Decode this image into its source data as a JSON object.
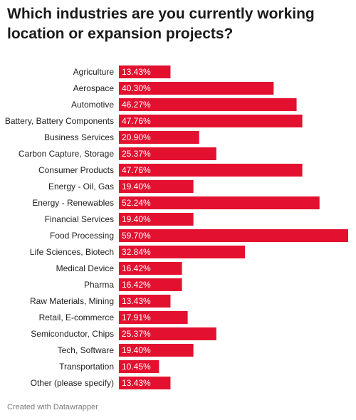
{
  "title": "Which industries are you currently working location or expansion projects?",
  "footer": "Created with Datawrapper",
  "colors": {
    "bar": "#e3112f"
  },
  "chart_data": {
    "type": "bar",
    "orientation": "horizontal",
    "title": "Which industries are you currently working location or expansion projects?",
    "categories": [
      "Agriculture",
      "Aerospace",
      "Automotive",
      "Battery, Battery Components",
      "Business Services",
      "Carbon Capture, Storage",
      "Consumer Products",
      "Energy - Oil, Gas",
      "Energy - Renewables",
      "Financial Services",
      "Food Processing",
      "Life Sciences, Biotech",
      "Medical Device",
      "Pharma",
      "Raw Materials, Mining",
      "Retail, E-commerce",
      "Semiconductor, Chips",
      "Tech, Software",
      "Transportation",
      "Other (please specify)"
    ],
    "values": [
      13.43,
      40.3,
      46.27,
      47.76,
      20.9,
      25.37,
      47.76,
      19.4,
      52.24,
      19.4,
      59.7,
      32.84,
      16.42,
      16.42,
      13.43,
      17.91,
      25.37,
      19.4,
      10.45,
      13.43
    ],
    "value_labels": [
      "13.43%",
      "40.30%",
      "46.27%",
      "47.76%",
      "20.90%",
      "25.37%",
      "47.76%",
      "19.40%",
      "52.24%",
      "19.40%",
      "59.70%",
      "32.84%",
      "16.42%",
      "16.42%",
      "13.43%",
      "17.91%",
      "25.37%",
      "19.40%",
      "10.45%",
      "13.43%"
    ],
    "xlim": [
      0,
      59.7
    ],
    "grid": false,
    "legend": "none"
  }
}
